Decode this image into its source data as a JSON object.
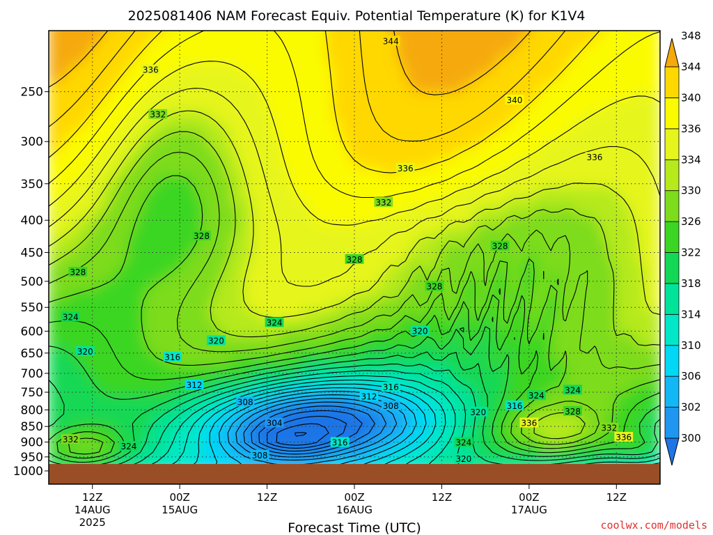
{
  "title": "2025081406 NAM Forecast Equiv. Potential Temperature (K) for K1V4",
  "credit": "coolwx.com/models",
  "colors": {
    "credit": "#e0302a",
    "ground": "#9a4e26",
    "grid": "#333333",
    "contour": "#000000"
  },
  "chart_data": {
    "type": "heatmap",
    "title": "2025081406 NAM Forecast Equiv. Potential Temperature (K) for K1V4",
    "xlabel": "Forecast Time (UTC)",
    "ylabel": "",
    "y_scale": "log",
    "y_reversed": true,
    "y_ticks": [
      250,
      300,
      350,
      400,
      450,
      500,
      550,
      600,
      650,
      700,
      750,
      800,
      850,
      900,
      950,
      1000
    ],
    "y_range": [
      200,
      1000
    ],
    "x_ticks": [
      {
        "hour": 6,
        "lines": [
          "12Z",
          "14AUG",
          "2025"
        ]
      },
      {
        "hour": 18,
        "lines": [
          "00Z",
          "15AUG"
        ]
      },
      {
        "hour": 30,
        "lines": [
          "12Z"
        ]
      },
      {
        "hour": 42,
        "lines": [
          "00Z",
          "16AUG"
        ]
      },
      {
        "hour": 54,
        "lines": [
          "12Z"
        ]
      },
      {
        "hour": 66,
        "lines": [
          "00Z",
          "17AUG"
        ]
      },
      {
        "hour": 78,
        "lines": [
          "12Z"
        ]
      }
    ],
    "x_range": [
      0,
      84
    ],
    "grid": true,
    "colorbar": {
      "levels": [
        300,
        302,
        306,
        310,
        314,
        318,
        322,
        326,
        330,
        334,
        336,
        340,
        344,
        348
      ],
      "colors": [
        "#1f75e6",
        "#1f96f0",
        "#12b7f5",
        "#00d8f5",
        "#00e8c8",
        "#00e49a",
        "#12d855",
        "#3bd623",
        "#7ddc1c",
        "#b6ea1b",
        "#e6f51c",
        "#fbfb00",
        "#ffd800",
        "#f5a90a"
      ],
      "placement": "right"
    },
    "ground_level_hpa": 975,
    "contour_labels": [
      {
        "v": "344",
        "hour": 47,
        "p": 208
      },
      {
        "v": "336",
        "hour": 14,
        "p": 231
      },
      {
        "v": "340",
        "hour": 64,
        "p": 258
      },
      {
        "v": "332",
        "hour": 15,
        "p": 272
      },
      {
        "v": "336",
        "hour": 49,
        "p": 331
      },
      {
        "v": "336",
        "hour": 75,
        "p": 318
      },
      {
        "v": "332",
        "hour": 46,
        "p": 375
      },
      {
        "v": "328",
        "hour": 21,
        "p": 424
      },
      {
        "v": "328",
        "hour": 62,
        "p": 440
      },
      {
        "v": "328",
        "hour": 42,
        "p": 462
      },
      {
        "v": "328",
        "hour": 4,
        "p": 484
      },
      {
        "v": "328",
        "hour": 53,
        "p": 510
      },
      {
        "v": "324",
        "hour": 3,
        "p": 570
      },
      {
        "v": "324",
        "hour": 31,
        "p": 582
      },
      {
        "v": "320",
        "hour": 51,
        "p": 600
      },
      {
        "v": "320",
        "hour": 23,
        "p": 622
      },
      {
        "v": "320",
        "hour": 5,
        "p": 647
      },
      {
        "v": "316",
        "hour": 17,
        "p": 660
      },
      {
        "v": "316",
        "hour": 47,
        "p": 737
      },
      {
        "v": "312",
        "hour": 20,
        "p": 731
      },
      {
        "v": "312",
        "hour": 44,
        "p": 762
      },
      {
        "v": "308",
        "hour": 27,
        "p": 778
      },
      {
        "v": "308",
        "hour": 47,
        "p": 789
      },
      {
        "v": "324",
        "hour": 67,
        "p": 760
      },
      {
        "v": "324",
        "hour": 72,
        "p": 745
      },
      {
        "v": "316",
        "hour": 64,
        "p": 789
      },
      {
        "v": "320",
        "hour": 59,
        "p": 807
      },
      {
        "v": "328",
        "hour": 72,
        "p": 805
      },
      {
        "v": "336",
        "hour": 66,
        "p": 840
      },
      {
        "v": "332",
        "hour": 77,
        "p": 855
      },
      {
        "v": "336",
        "hour": 79,
        "p": 885
      },
      {
        "v": "304",
        "hour": 31,
        "p": 840
      },
      {
        "v": "316",
        "hour": 40,
        "p": 902
      },
      {
        "v": "324",
        "hour": 11,
        "p": 915
      },
      {
        "v": "332",
        "hour": 3,
        "p": 892
      },
      {
        "v": "324",
        "hour": 57,
        "p": 902
      },
      {
        "v": "308",
        "hour": 29,
        "p": 945
      },
      {
        "v": "320",
        "hour": 57,
        "p": 958
      }
    ]
  }
}
